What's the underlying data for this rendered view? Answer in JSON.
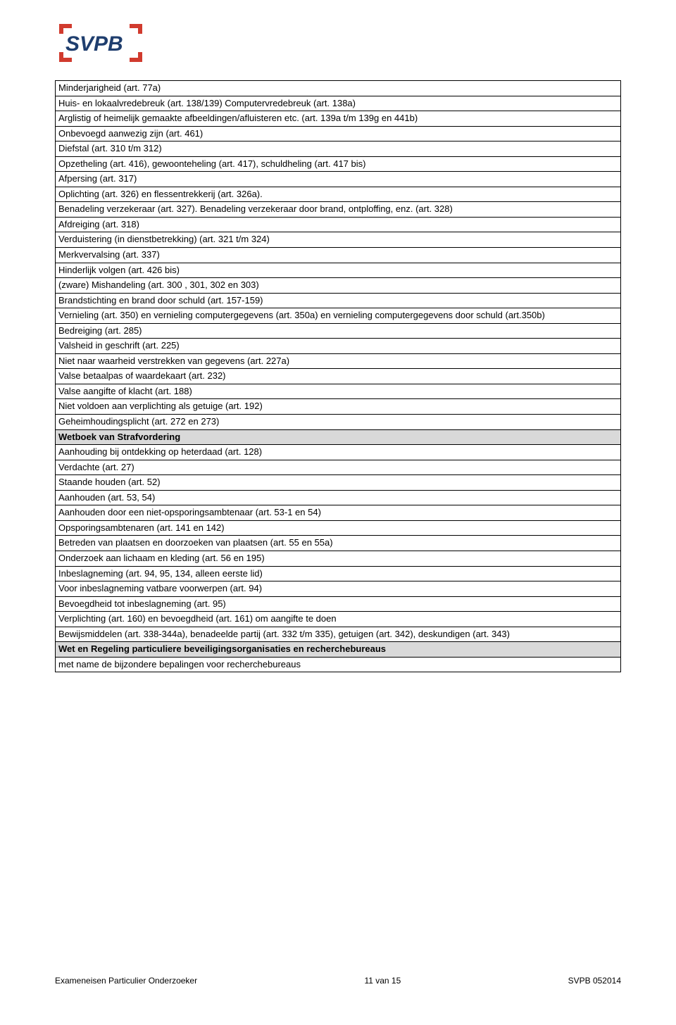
{
  "logo": {
    "text": "SVPB",
    "text_color": "#1f3e6e",
    "bracket_color": "#d13b2e"
  },
  "table": {
    "rows": [
      {
        "text": "Minderjarigheid (art. 77a)",
        "header": false
      },
      {
        "text": "Huis- en lokaalvredebreuk (art. 138/139) Computervredebreuk (art. 138a)",
        "header": false
      },
      {
        "text": "Arglistig of heimelijk gemaakte afbeeldingen/afluisteren etc. (art. 139a t/m 139g en 441b)",
        "header": false
      },
      {
        "text": "Onbevoegd aanwezig zijn (art. 461)",
        "header": false
      },
      {
        "text": "Diefstal (art. 310 t/m 312)",
        "header": false
      },
      {
        "text": "Opzetheling (art. 416), gewoonteheling (art. 417), schuldheling (art. 417 bis)",
        "header": false
      },
      {
        "text": "Afpersing (art. 317)",
        "header": false
      },
      {
        "text": "Oplichting (art. 326) en flessentrekkerij (art. 326a).",
        "header": false
      },
      {
        "text": "Benadeling verzekeraar (art. 327). Benadeling verzekeraar door brand, ontploffing, enz. (art. 328)",
        "header": false
      },
      {
        "text": "Afdreiging (art. 318)",
        "header": false
      },
      {
        "text": "Verduistering (in dienstbetrekking) (art. 321 t/m 324)",
        "header": false
      },
      {
        "text": "Merkvervalsing (art. 337)",
        "header": false
      },
      {
        "text": "Hinderlijk volgen (art. 426 bis)",
        "header": false
      },
      {
        "text": "(zware) Mishandeling (art. 300 , 301, 302 en 303)",
        "header": false
      },
      {
        "text": "Brandstichting en brand door schuld (art. 157-159)",
        "header": false
      },
      {
        "text": "Vernieling (art. 350) en vernieling computergegevens (art. 350a) en vernieling computergegevens door schuld (art.350b)",
        "header": false
      },
      {
        "text": "Bedreiging (art. 285)",
        "header": false
      },
      {
        "text": "Valsheid in geschrift (art. 225)",
        "header": false
      },
      {
        "text": "Niet naar waarheid verstrekken van gegevens (art. 227a)",
        "header": false
      },
      {
        "text": "Valse betaalpas of waardekaart (art. 232)",
        "header": false
      },
      {
        "text": "Valse aangifte of klacht (art. 188)",
        "header": false
      },
      {
        "text": "Niet voldoen aan verplichting als getuige (art. 192)",
        "header": false
      },
      {
        "text": "Geheimhoudingsplicht (art. 272 en 273)",
        "header": false
      },
      {
        "text": "Wetboek van Strafvordering",
        "header": true
      },
      {
        "text": "Aanhouding bij ontdekking op heterdaad (art. 128)",
        "header": false
      },
      {
        "text": "Verdachte (art. 27)",
        "header": false
      },
      {
        "text": "Staande houden (art. 52)",
        "header": false
      },
      {
        "text": "Aanhouden (art. 53, 54)",
        "header": false
      },
      {
        "text": "Aanhouden door een niet-opsporingsambtenaar (art. 53-1 en 54)",
        "header": false
      },
      {
        "text": "Opsporingsambtenaren (art. 141 en 142)",
        "header": false
      },
      {
        "text": "Betreden van plaatsen en doorzoeken van plaatsen (art. 55 en 55a)",
        "header": false
      },
      {
        "text": "Onderzoek aan lichaam en kleding (art. 56 en 195)",
        "header": false
      },
      {
        "text": "Inbeslagneming (art. 94, 95, 134, alleen eerste lid)",
        "header": false
      },
      {
        "text": "Voor inbeslagneming vatbare voorwerpen (art. 94)",
        "header": false
      },
      {
        "text": "Bevoegdheid tot inbeslagneming (art. 95)",
        "header": false
      },
      {
        "text": "Verplichting (art. 160) en bevoegdheid (art. 161) om aangifte te doen",
        "header": false
      },
      {
        "text": "Bewijsmiddelen (art. 338-344a), benadeelde partij (art. 332 t/m 335), getuigen (art. 342), deskundigen (art. 343)",
        "header": false
      },
      {
        "text": "Wet en Regeling particuliere beveiligingsorganisaties en recherchebureaus",
        "header": true
      },
      {
        "text": "met name de bijzondere bepalingen voor recherchebureaus",
        "header": false
      }
    ]
  },
  "footer": {
    "left": "Exameneisen Particulier Onderzoeker",
    "center": "11 van 15",
    "right": "SVPB 052014"
  }
}
